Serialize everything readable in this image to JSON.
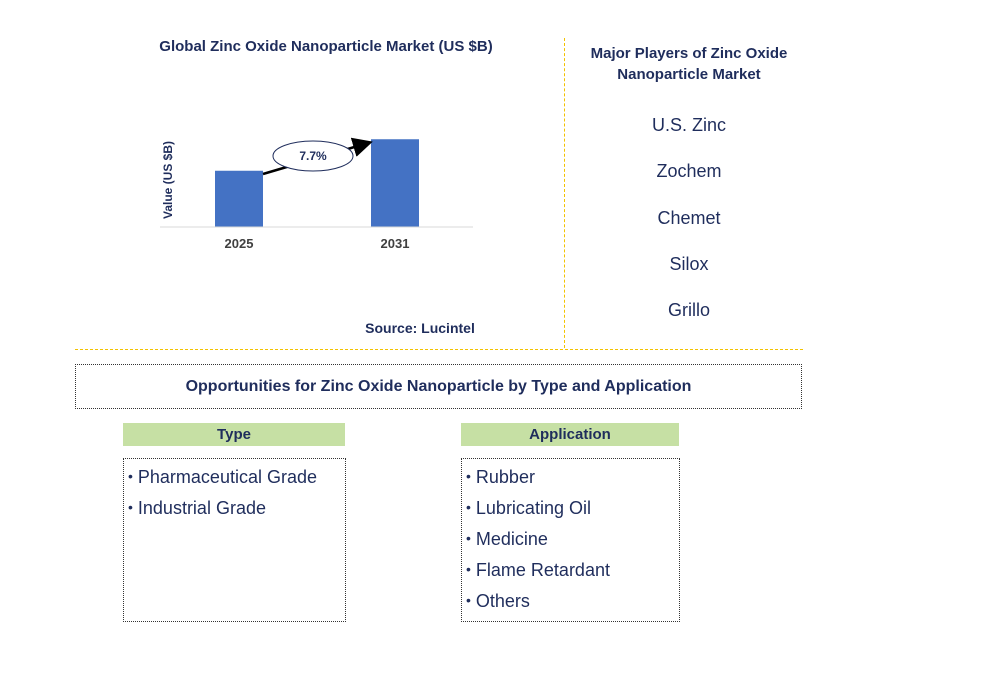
{
  "chart_data": {
    "type": "bar",
    "title": "Global Zinc Oxide Nanoparticle Market (US $B)",
    "ylabel": "Value (US $B)",
    "xlabel": "",
    "categories": [
      "2025",
      "2031"
    ],
    "values": [
      1.0,
      1.56
    ],
    "ylim": [
      0,
      1.6
    ],
    "grid": false,
    "bar_color": "#4472c4",
    "annotation": {
      "label": "7.7%",
      "from": "2025",
      "to": "2031"
    }
  },
  "source": "Source: Lucintel",
  "players": {
    "title": "Major Players of Zinc Oxide Nanoparticle Market",
    "items": [
      "U.S. Zinc",
      "Zochem",
      "Chemet",
      "Silox",
      "Grillo"
    ]
  },
  "opportunities": {
    "title": "Opportunities for Zinc Oxide Nanoparticle by Type and Application",
    "type": {
      "header": "Type",
      "items": [
        "Pharmaceutical Grade",
        "Industrial Grade"
      ]
    },
    "application": {
      "header": "Application",
      "items": [
        "Rubber",
        "Lubricating Oil",
        "Medicine",
        "Flame Retardant",
        "Others"
      ]
    }
  },
  "colors": {
    "text_navy": "#1f2d5c",
    "divider_gold": "#f2c200",
    "header_green": "#c6e0a4",
    "bar_blue": "#4472c4"
  }
}
